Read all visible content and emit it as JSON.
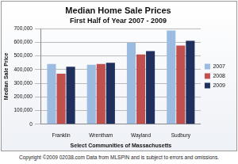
{
  "chart_data": {
    "type": "bar",
    "title": "Median Home Sale Prices",
    "subtitle": "First Half of Year 2007 - 2009",
    "y_label": "Median Sale Price",
    "x_label": "Select Communities of Massachusetts",
    "annotations": [
      "Copyright ©2009 02038.com  Data from MLSPIN and is subject to errors and omissions."
    ],
    "categories": [
      "Franklin",
      "Wrentham",
      "Wayland",
      "Sudbury"
    ],
    "series": [
      {
        "name": "2007",
        "color": "#9bbbe0",
        "values": [
          440000,
          435000,
          595000,
          685000
        ]
      },
      {
        "name": "2008",
        "color": "#c0504d",
        "values": [
          370000,
          440000,
          510000,
          575000
        ]
      },
      {
        "name": "2009",
        "color": "#1f2f5e",
        "values": [
          420000,
          450000,
          535000,
          610000
        ]
      }
    ],
    "ylim": [
      0,
      700000
    ],
    "yticks": [
      0,
      {
        "value": 100000,
        "label": "100,000"
      },
      {
        "value": 200000,
        "label": "200,000"
      },
      {
        "value": 300000,
        "label": "300,000"
      },
      {
        "value": 400000,
        "label": "400,000"
      },
      {
        "value": 500000,
        "label": "500,000"
      },
      {
        "value": 600000,
        "label": "600,000"
      },
      {
        "value": 700000,
        "label": "700,000"
      }
    ],
    "grid": true,
    "legend": "right"
  }
}
